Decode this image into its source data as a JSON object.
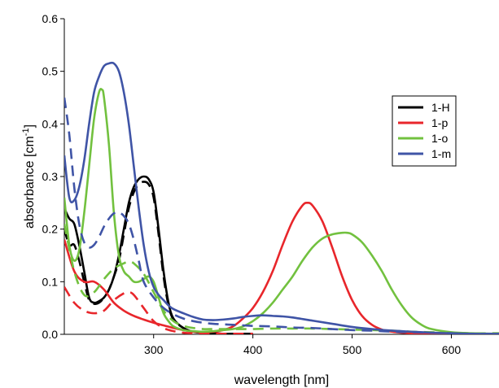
{
  "chart_data": {
    "type": "line",
    "xlabel": "wavelength [nm]",
    "ylabel": "absorbance [cm",
    "ylabel_superscript": "-1",
    "ylabel_suffix": "]",
    "xlim": [
      210,
      648
    ],
    "ylim": [
      0,
      0.6
    ],
    "x_ticks": [
      300,
      400,
      500,
      600
    ],
    "y_ticks": [
      0.0,
      0.1,
      0.2,
      0.3,
      0.4,
      0.5,
      0.6
    ],
    "x_tick_labels": [
      "300",
      "400",
      "500",
      "600"
    ],
    "y_tick_labels": [
      "0.0",
      "0.1",
      "0.2",
      "0.3",
      "0.4",
      "0.5",
      "0.6"
    ],
    "grid": false,
    "legend_position": "top-right",
    "legend": [
      {
        "label": "1-H",
        "color": "#000000"
      },
      {
        "label": "1-p",
        "color": "#e8262b"
      },
      {
        "label": "1-o",
        "color": "#72c13f"
      },
      {
        "label": "1-m",
        "color": "#3f54a6"
      }
    ],
    "series": [
      {
        "name": "1-H",
        "style": "solid",
        "color": "#000000",
        "x": [
          210,
          215,
          220,
          225,
          230,
          235,
          240,
          245,
          250,
          255,
          260,
          265,
          270,
          275,
          280,
          285,
          290,
          295,
          300,
          305,
          310,
          315,
          320,
          330,
          340,
          350,
          360,
          370,
          380,
          390,
          400
        ],
        "y": [
          0.24,
          0.22,
          0.21,
          0.17,
          0.12,
          0.07,
          0.06,
          0.063,
          0.07,
          0.085,
          0.11,
          0.15,
          0.2,
          0.25,
          0.28,
          0.295,
          0.3,
          0.295,
          0.27,
          0.2,
          0.12,
          0.06,
          0.03,
          0.012,
          0.005,
          0.003,
          0.002,
          0.001,
          0.001,
          0.001,
          0.001
        ]
      },
      {
        "name": "1-H dashed",
        "style": "dashed",
        "color": "#000000",
        "x": [
          210,
          215,
          220,
          225,
          230,
          235,
          240,
          245,
          250,
          255,
          260,
          265,
          270,
          275,
          280,
          285,
          290,
          295,
          300,
          305,
          310,
          315,
          320,
          330,
          340,
          350,
          360,
          370,
          380,
          390,
          400
        ],
        "y": [
          0.2,
          0.17,
          0.17,
          0.14,
          0.1,
          0.065,
          0.058,
          0.06,
          0.07,
          0.085,
          0.11,
          0.14,
          0.19,
          0.24,
          0.27,
          0.285,
          0.29,
          0.285,
          0.26,
          0.19,
          0.11,
          0.055,
          0.028,
          0.012,
          0.005,
          0.003,
          0.002,
          0.001,
          0.001,
          0.001,
          0.001
        ]
      },
      {
        "name": "1-p",
        "style": "solid",
        "color": "#e8262b",
        "x": [
          210,
          220,
          230,
          240,
          250,
          260,
          270,
          280,
          290,
          300,
          310,
          320,
          330,
          340,
          350,
          360,
          370,
          380,
          390,
          400,
          410,
          420,
          430,
          440,
          450,
          455,
          460,
          470,
          480,
          490,
          500,
          510,
          520,
          530,
          540,
          550,
          560,
          580,
          600,
          620,
          648
        ],
        "y": [
          0.18,
          0.12,
          0.1,
          0.1,
          0.085,
          0.06,
          0.045,
          0.035,
          0.028,
          0.022,
          0.017,
          0.012,
          0.008,
          0.005,
          0.004,
          0.005,
          0.008,
          0.015,
          0.03,
          0.05,
          0.08,
          0.12,
          0.17,
          0.215,
          0.245,
          0.25,
          0.245,
          0.215,
          0.165,
          0.11,
          0.065,
          0.035,
          0.018,
          0.009,
          0.005,
          0.003,
          0.002,
          0.001,
          0.001,
          0.001,
          0.001
        ]
      },
      {
        "name": "1-p dashed",
        "style": "dashed",
        "color": "#e8262b",
        "x": [
          210,
          220,
          230,
          240,
          250,
          260,
          270,
          275,
          280,
          290,
          300,
          310,
          320,
          330,
          340,
          350,
          360,
          370,
          380,
          390,
          400
        ],
        "y": [
          0.09,
          0.06,
          0.045,
          0.04,
          0.045,
          0.065,
          0.078,
          0.08,
          0.075,
          0.05,
          0.025,
          0.012,
          0.006,
          0.003,
          0.002,
          0.002,
          0.002,
          0.001,
          0.001,
          0.001,
          0.001
        ]
      },
      {
        "name": "1-o",
        "style": "solid",
        "color": "#72c13f",
        "x": [
          210,
          215,
          220,
          225,
          230,
          235,
          240,
          245,
          248,
          250,
          255,
          260,
          265,
          270,
          275,
          280,
          285,
          290,
          295,
          300,
          305,
          310,
          315,
          320,
          330,
          340,
          350,
          360,
          370,
          380,
          390,
          400,
          410,
          420,
          430,
          440,
          450,
          460,
          470,
          480,
          490,
          495,
          500,
          510,
          520,
          530,
          540,
          550,
          560,
          570,
          580,
          600,
          620,
          648
        ],
        "y": [
          0.26,
          0.17,
          0.14,
          0.16,
          0.23,
          0.32,
          0.41,
          0.46,
          0.465,
          0.45,
          0.36,
          0.23,
          0.15,
          0.12,
          0.11,
          0.1,
          0.1,
          0.105,
          0.11,
          0.1,
          0.07,
          0.04,
          0.025,
          0.015,
          0.008,
          0.006,
          0.005,
          0.006,
          0.008,
          0.01,
          0.015,
          0.025,
          0.04,
          0.06,
          0.085,
          0.11,
          0.14,
          0.165,
          0.182,
          0.19,
          0.193,
          0.193,
          0.19,
          0.175,
          0.15,
          0.12,
          0.085,
          0.055,
          0.032,
          0.018,
          0.01,
          0.004,
          0.002,
          0.001
        ]
      },
      {
        "name": "1-o dashed",
        "style": "dashed",
        "color": "#72c13f",
        "x": [
          210,
          220,
          230,
          240,
          250,
          260,
          270,
          275,
          280,
          290,
          300,
          310,
          320,
          330,
          340,
          350,
          360,
          370,
          380,
          390,
          400,
          420,
          440,
          460,
          480,
          500,
          520,
          540,
          560,
          580,
          600,
          620,
          648
        ],
        "y": [
          0.21,
          0.12,
          0.075,
          0.08,
          0.105,
          0.125,
          0.135,
          0.138,
          0.135,
          0.115,
          0.08,
          0.045,
          0.025,
          0.016,
          0.012,
          0.01,
          0.01,
          0.01,
          0.01,
          0.01,
          0.01,
          0.011,
          0.011,
          0.011,
          0.01,
          0.009,
          0.008,
          0.007,
          0.005,
          0.004,
          0.003,
          0.002,
          0.002
        ]
      },
      {
        "name": "1-m",
        "style": "solid",
        "color": "#3f54a6",
        "x": [
          210,
          215,
          220,
          225,
          230,
          235,
          240,
          245,
          250,
          255,
          260,
          265,
          270,
          275,
          280,
          285,
          290,
          295,
          300,
          305,
          310,
          315,
          320,
          330,
          340,
          350,
          360,
          370,
          380,
          390,
          400,
          410,
          420,
          430,
          440,
          460,
          480,
          500,
          520,
          540,
          560,
          580,
          600,
          620,
          648
        ],
        "y": [
          0.34,
          0.26,
          0.255,
          0.28,
          0.33,
          0.4,
          0.46,
          0.49,
          0.51,
          0.515,
          0.515,
          0.5,
          0.46,
          0.4,
          0.32,
          0.24,
          0.17,
          0.12,
          0.09,
          0.075,
          0.065,
          0.055,
          0.048,
          0.04,
          0.033,
          0.028,
          0.027,
          0.028,
          0.03,
          0.033,
          0.035,
          0.036,
          0.035,
          0.034,
          0.032,
          0.026,
          0.02,
          0.014,
          0.01,
          0.007,
          0.005,
          0.003,
          0.002,
          0.001,
          0.001
        ]
      },
      {
        "name": "1-m dashed",
        "style": "dashed",
        "color": "#3f54a6",
        "x": [
          210,
          215,
          220,
          225,
          230,
          235,
          240,
          245,
          250,
          255,
          260,
          265,
          270,
          275,
          280,
          285,
          290,
          300,
          310,
          320,
          330,
          340,
          350,
          360,
          370,
          380,
          390,
          400,
          420,
          440,
          460,
          480,
          500,
          520,
          540,
          560,
          580,
          600,
          620,
          648
        ],
        "y": [
          0.45,
          0.38,
          0.28,
          0.21,
          0.175,
          0.165,
          0.17,
          0.185,
          0.205,
          0.22,
          0.23,
          0.232,
          0.225,
          0.21,
          0.18,
          0.14,
          0.1,
          0.07,
          0.05,
          0.038,
          0.03,
          0.025,
          0.022,
          0.02,
          0.019,
          0.018,
          0.017,
          0.016,
          0.015,
          0.013,
          0.012,
          0.01,
          0.008,
          0.007,
          0.005,
          0.004,
          0.003,
          0.002,
          0.001,
          0.001
        ]
      }
    ]
  }
}
